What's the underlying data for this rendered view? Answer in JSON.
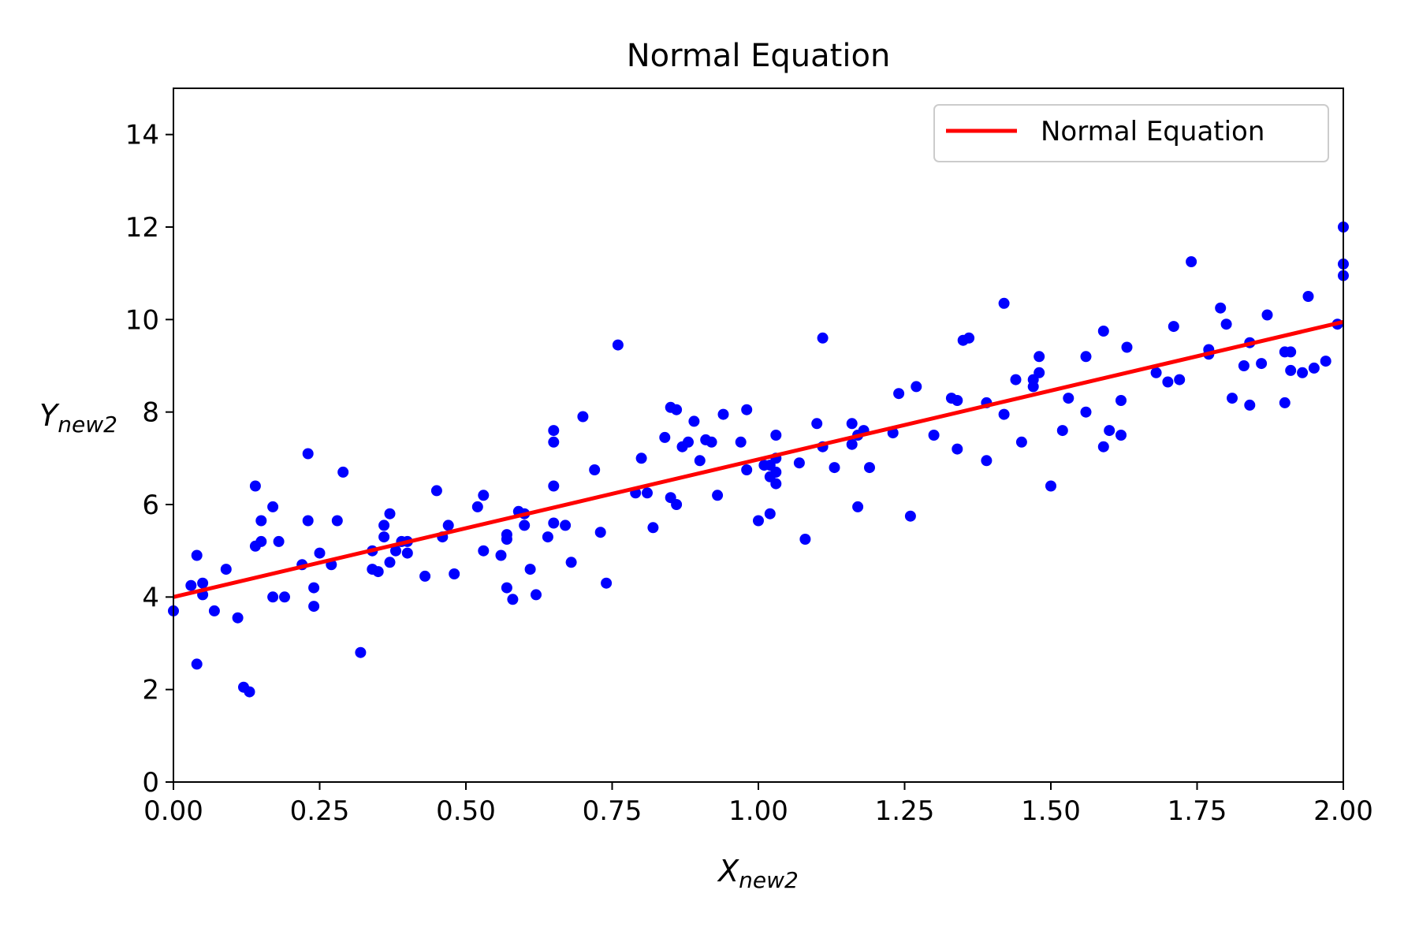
{
  "chart_data": {
    "type": "scatter",
    "title": "Normal Equation",
    "xlabel": "X",
    "xlabel_sub": "new2",
    "ylabel": "Y",
    "ylabel_sub": "new2",
    "xlim": [
      0,
      2
    ],
    "ylim": [
      0,
      15
    ],
    "x_ticks": [
      "0.00",
      "0.25",
      "0.50",
      "0.75",
      "1.00",
      "1.25",
      "1.50",
      "1.75",
      "2.00"
    ],
    "x_tick_values": [
      0,
      0.25,
      0.5,
      0.75,
      1.0,
      1.25,
      1.5,
      1.75,
      2.0
    ],
    "y_ticks": [
      "0",
      "2",
      "4",
      "6",
      "8",
      "10",
      "12",
      "14"
    ],
    "y_tick_values": [
      0,
      2,
      4,
      6,
      8,
      10,
      12,
      14
    ],
    "grid": false,
    "legend_position": "top-right",
    "colors": {
      "points": "#0000ff",
      "line": "#ff0000",
      "axes": "#000000",
      "legend_border": "#cccccc"
    },
    "series": [
      {
        "name": "Normal Equation",
        "kind": "line",
        "x": [
          0,
          2
        ],
        "y": [
          4.0,
          9.95
        ]
      },
      {
        "kind": "scatter",
        "points": [
          [
            0.0,
            3.7
          ],
          [
            0.03,
            4.25
          ],
          [
            0.04,
            4.9
          ],
          [
            0.04,
            2.55
          ],
          [
            0.05,
            4.05
          ],
          [
            0.05,
            4.3
          ],
          [
            0.07,
            3.7
          ],
          [
            0.09,
            4.6
          ],
          [
            0.11,
            3.55
          ],
          [
            0.12,
            2.05
          ],
          [
            0.13,
            1.95
          ],
          [
            0.14,
            5.1
          ],
          [
            0.14,
            6.4
          ],
          [
            0.15,
            5.65
          ],
          [
            0.15,
            5.2
          ],
          [
            0.17,
            4.0
          ],
          [
            0.17,
            5.95
          ],
          [
            0.18,
            5.2
          ],
          [
            0.19,
            4.0
          ],
          [
            0.22,
            4.7
          ],
          [
            0.23,
            7.1
          ],
          [
            0.23,
            5.65
          ],
          [
            0.24,
            3.8
          ],
          [
            0.24,
            4.2
          ],
          [
            0.25,
            4.95
          ],
          [
            0.27,
            4.7
          ],
          [
            0.28,
            5.65
          ],
          [
            0.29,
            6.7
          ],
          [
            0.32,
            2.8
          ],
          [
            0.34,
            5.0
          ],
          [
            0.34,
            4.6
          ],
          [
            0.35,
            4.55
          ],
          [
            0.36,
            5.55
          ],
          [
            0.36,
            5.3
          ],
          [
            0.37,
            4.75
          ],
          [
            0.37,
            5.8
          ],
          [
            0.38,
            5.0
          ],
          [
            0.39,
            5.2
          ],
          [
            0.4,
            4.95
          ],
          [
            0.4,
            5.2
          ],
          [
            0.43,
            4.45
          ],
          [
            0.45,
            6.3
          ],
          [
            0.46,
            5.3
          ],
          [
            0.47,
            5.55
          ],
          [
            0.48,
            4.5
          ],
          [
            0.52,
            5.95
          ],
          [
            0.53,
            5.0
          ],
          [
            0.53,
            6.2
          ],
          [
            0.56,
            4.9
          ],
          [
            0.57,
            5.25
          ],
          [
            0.57,
            4.2
          ],
          [
            0.57,
            5.35
          ],
          [
            0.58,
            3.95
          ],
          [
            0.59,
            5.85
          ],
          [
            0.6,
            5.55
          ],
          [
            0.6,
            5.8
          ],
          [
            0.61,
            4.6
          ],
          [
            0.62,
            4.05
          ],
          [
            0.64,
            5.3
          ],
          [
            0.65,
            6.4
          ],
          [
            0.65,
            5.6
          ],
          [
            0.65,
            7.35
          ],
          [
            0.65,
            7.6
          ],
          [
            0.67,
            5.55
          ],
          [
            0.68,
            4.75
          ],
          [
            0.7,
            7.9
          ],
          [
            0.72,
            6.75
          ],
          [
            0.73,
            5.4
          ],
          [
            0.74,
            4.3
          ],
          [
            0.76,
            9.45
          ],
          [
            0.79,
            6.25
          ],
          [
            0.8,
            7.0
          ],
          [
            0.81,
            6.25
          ],
          [
            0.82,
            5.5
          ],
          [
            0.84,
            7.45
          ],
          [
            0.85,
            8.1
          ],
          [
            0.85,
            6.15
          ],
          [
            0.86,
            6.0
          ],
          [
            0.86,
            8.05
          ],
          [
            0.87,
            7.25
          ],
          [
            0.88,
            7.35
          ],
          [
            0.89,
            7.8
          ],
          [
            0.9,
            6.95
          ],
          [
            0.91,
            7.4
          ],
          [
            0.92,
            7.35
          ],
          [
            0.93,
            6.2
          ],
          [
            0.94,
            7.95
          ],
          [
            0.97,
            7.35
          ],
          [
            0.98,
            6.75
          ],
          [
            0.98,
            8.05
          ],
          [
            1.0,
            5.65
          ],
          [
            1.01,
            6.85
          ],
          [
            1.02,
            6.6
          ],
          [
            1.02,
            5.8
          ],
          [
            1.02,
            6.85
          ],
          [
            1.03,
            6.7
          ],
          [
            1.03,
            6.45
          ],
          [
            1.03,
            7.0
          ],
          [
            1.03,
            7.5
          ],
          [
            1.07,
            6.9
          ],
          [
            1.08,
            5.25
          ],
          [
            1.1,
            7.75
          ],
          [
            1.11,
            7.25
          ],
          [
            1.11,
            9.6
          ],
          [
            1.13,
            6.8
          ],
          [
            1.16,
            7.3
          ],
          [
            1.16,
            7.75
          ],
          [
            1.17,
            7.5
          ],
          [
            1.17,
            5.95
          ],
          [
            1.18,
            7.6
          ],
          [
            1.19,
            6.8
          ],
          [
            1.23,
            7.55
          ],
          [
            1.24,
            8.4
          ],
          [
            1.26,
            5.75
          ],
          [
            1.27,
            8.55
          ],
          [
            1.3,
            7.5
          ],
          [
            1.33,
            8.3
          ],
          [
            1.34,
            7.2
          ],
          [
            1.34,
            8.25
          ],
          [
            1.35,
            9.55
          ],
          [
            1.36,
            9.6
          ],
          [
            1.39,
            6.95
          ],
          [
            1.39,
            8.2
          ],
          [
            1.42,
            7.95
          ],
          [
            1.42,
            10.35
          ],
          [
            1.44,
            8.7
          ],
          [
            1.45,
            7.35
          ],
          [
            1.47,
            8.55
          ],
          [
            1.47,
            8.7
          ],
          [
            1.48,
            9.2
          ],
          [
            1.48,
            8.85
          ],
          [
            1.5,
            6.4
          ],
          [
            1.52,
            7.6
          ],
          [
            1.53,
            8.3
          ],
          [
            1.56,
            8.0
          ],
          [
            1.56,
            9.2
          ],
          [
            1.59,
            7.25
          ],
          [
            1.59,
            9.75
          ],
          [
            1.6,
            7.6
          ],
          [
            1.62,
            8.25
          ],
          [
            1.62,
            7.5
          ],
          [
            1.63,
            9.4
          ],
          [
            1.68,
            8.85
          ],
          [
            1.7,
            8.65
          ],
          [
            1.71,
            9.85
          ],
          [
            1.72,
            8.7
          ],
          [
            1.74,
            11.25
          ],
          [
            1.77,
            9.35
          ],
          [
            1.77,
            9.25
          ],
          [
            1.79,
            10.25
          ],
          [
            1.8,
            9.9
          ],
          [
            1.81,
            8.3
          ],
          [
            1.83,
            9.0
          ],
          [
            1.84,
            8.15
          ],
          [
            1.84,
            9.5
          ],
          [
            1.86,
            9.05
          ],
          [
            1.87,
            10.1
          ],
          [
            1.9,
            9.3
          ],
          [
            1.9,
            8.2
          ],
          [
            1.91,
            9.3
          ],
          [
            1.91,
            8.9
          ],
          [
            1.93,
            8.85
          ],
          [
            1.94,
            10.5
          ],
          [
            1.95,
            8.95
          ],
          [
            1.97,
            9.1
          ],
          [
            1.99,
            9.9
          ],
          [
            2.0,
            12.0
          ],
          [
            2.0,
            11.2
          ],
          [
            2.0,
            10.95
          ]
        ]
      }
    ]
  }
}
